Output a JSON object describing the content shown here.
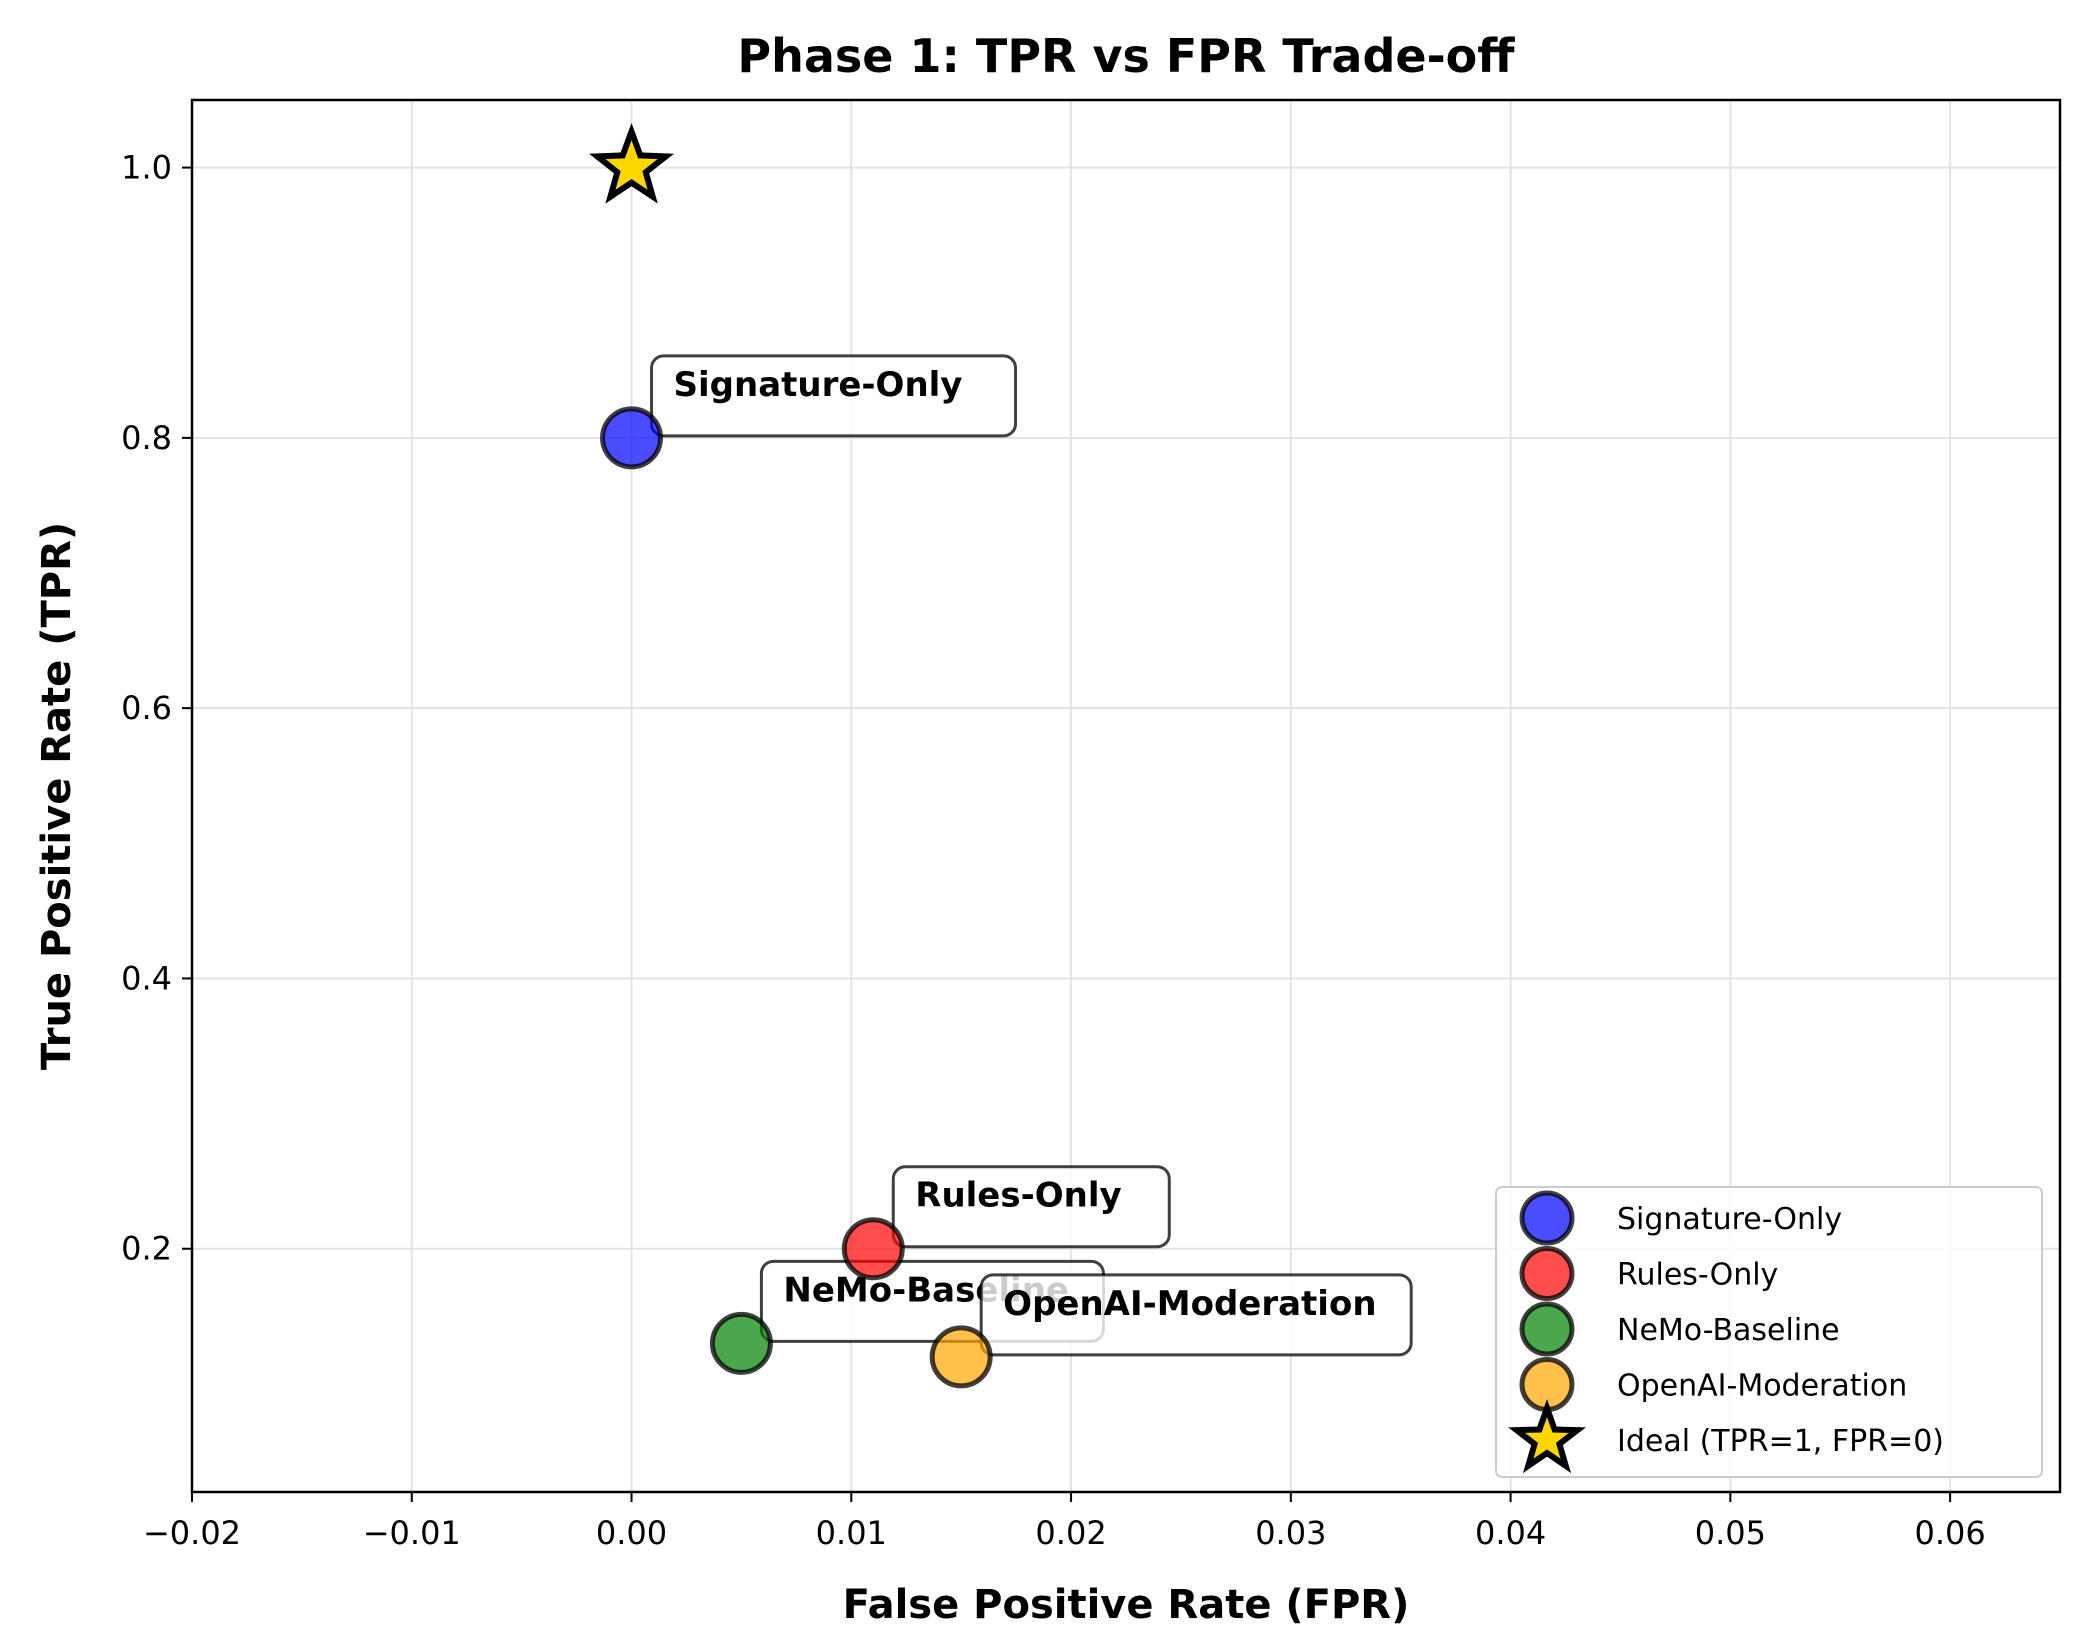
{
  "chart_data": {
    "type": "scatter",
    "title": "Phase 1: TPR vs FPR Trade-off",
    "xlabel": "False Positive Rate (FPR)",
    "ylabel": "True Positive Rate (TPR)",
    "xlim": [
      -0.02,
      0.065
    ],
    "ylim": [
      0.02,
      1.05
    ],
    "xticks": [
      -0.02,
      -0.01,
      0.0,
      0.01,
      0.02,
      0.03,
      0.04,
      0.05,
      0.06
    ],
    "xtick_labels": [
      "−0.02",
      "−0.01",
      "0.00",
      "0.01",
      "0.02",
      "0.03",
      "0.04",
      "0.05",
      "0.06"
    ],
    "yticks": [
      0.2,
      0.4,
      0.6,
      0.8,
      1.0
    ],
    "ytick_labels": [
      "0.2",
      "0.4",
      "0.6",
      "0.8",
      "1.0"
    ],
    "grid": true,
    "legend_position": "bottom-right",
    "series": [
      {
        "name": "Signature-Only",
        "x": [
          0.0
        ],
        "y": [
          0.8
        ],
        "color": "#0000ff",
        "marker": "circle",
        "annotation": "Signature-Only"
      },
      {
        "name": "Rules-Only",
        "x": [
          0.011
        ],
        "y": [
          0.2
        ],
        "color": "#ff0000",
        "marker": "circle",
        "annotation": "Rules-Only"
      },
      {
        "name": "NeMo-Baseline",
        "x": [
          0.005
        ],
        "y": [
          0.13
        ],
        "color": "#008000",
        "marker": "circle",
        "annotation": "NeMo-Baseline"
      },
      {
        "name": "OpenAI-Moderation",
        "x": [
          0.015
        ],
        "y": [
          0.12
        ],
        "color": "#ffa500",
        "marker": "circle",
        "annotation": "OpenAI-Moderation"
      },
      {
        "name": "Ideal (TPR=1, FPR=0)",
        "x": [
          0.0
        ],
        "y": [
          1.0
        ],
        "color": "#ffd700",
        "marker": "star"
      }
    ]
  }
}
